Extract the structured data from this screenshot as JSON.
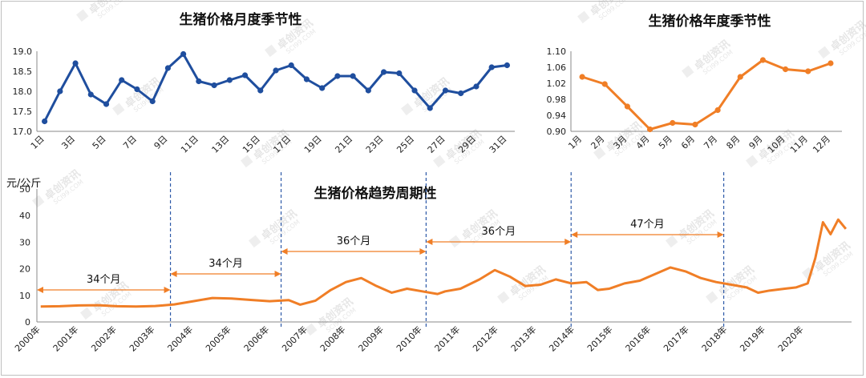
{
  "chart_data": [
    {
      "type": "line",
      "title": "生猪价格月度季节性",
      "x": [
        "1日",
        "2日",
        "3日",
        "4日",
        "5日",
        "6日",
        "7日",
        "8日",
        "9日",
        "10日",
        "11日",
        "12日",
        "13日",
        "14日",
        "15日",
        "16日",
        "17日",
        "18日",
        "19日",
        "20日",
        "21日",
        "22日",
        "23日",
        "24日",
        "25日",
        "26日",
        "27日",
        "28日",
        "29日",
        "30日",
        "31日"
      ],
      "xtick_labels": [
        "1日",
        "3日",
        "5日",
        "7日",
        "9日",
        "11日",
        "13日",
        "15日",
        "17日",
        "19日",
        "21日",
        "23日",
        "25日",
        "27日",
        "29日",
        "31日"
      ],
      "series": [
        {
          "values": [
            17.25,
            18.0,
            18.7,
            17.92,
            17.68,
            18.28,
            18.05,
            17.75,
            18.58,
            18.93,
            18.25,
            18.15,
            18.28,
            18.4,
            18.02,
            18.52,
            18.65,
            18.3,
            18.08,
            18.38,
            18.38,
            18.02,
            18.48,
            18.45,
            18.02,
            17.58,
            18.02,
            17.95,
            18.12,
            18.6,
            18.65
          ]
        }
      ],
      "ylim": [
        17.0,
        19.0
      ],
      "yticks": [
        "17.0",
        "17.5",
        "18.0",
        "18.5",
        "19.0"
      ],
      "colors": {
        "line": "#1f4e9e"
      },
      "grid": false
    },
    {
      "type": "line",
      "title": "生猪价格年度季节性",
      "x": [
        "1月",
        "2月",
        "3月",
        "4月",
        "5月",
        "6月",
        "7月",
        "8月",
        "9月",
        "10月",
        "11月",
        "12月"
      ],
      "series": [
        {
          "values": [
            1.036,
            1.018,
            0.962,
            0.905,
            0.921,
            0.917,
            0.953,
            1.036,
            1.078,
            1.055,
            1.05,
            1.07
          ]
        }
      ],
      "ylim": [
        0.9,
        1.1
      ],
      "yticks": [
        "0.90",
        "0.94",
        "0.98",
        "1.02",
        "1.06",
        "1.10"
      ],
      "colors": {
        "line": "#f07e26"
      },
      "grid": false
    },
    {
      "type": "line",
      "title": "生猪价格趋势周期性",
      "ylabel": "元/公斤",
      "x": [
        2000.0,
        2000.5,
        2001.0,
        2001.5,
        2002.0,
        2002.5,
        2003.0,
        2003.2,
        2003.5,
        2004.0,
        2004.5,
        2005.0,
        2005.5,
        2006.0,
        2006.5,
        2006.8,
        2007.2,
        2007.6,
        2008.0,
        2008.4,
        2008.8,
        2009.2,
        2009.6,
        2010.0,
        2010.4,
        2010.6,
        2011.0,
        2011.5,
        2011.9,
        2012.3,
        2012.7,
        2013.1,
        2013.5,
        2013.9,
        2014.3,
        2014.6,
        2014.9,
        2015.3,
        2015.7,
        2016.1,
        2016.5,
        2016.9,
        2017.3,
        2017.7,
        2018.1,
        2018.5,
        2018.8,
        2019.1,
        2019.5,
        2019.8,
        2020.1,
        2020.3,
        2020.5,
        2020.7,
        2020.9,
        2021.1
      ],
      "series": [
        {
          "values": [
            5.8,
            5.9,
            6.2,
            6.3,
            5.9,
            5.8,
            6.0,
            6.2,
            6.6,
            7.8,
            9.0,
            8.8,
            8.3,
            7.8,
            8.2,
            6.5,
            8.0,
            12.0,
            15.0,
            16.5,
            13.5,
            11.0,
            12.5,
            11.5,
            10.5,
            11.5,
            12.5,
            16.0,
            19.5,
            17.0,
            13.5,
            14.0,
            16.0,
            14.5,
            15.0,
            12.0,
            12.5,
            14.5,
            15.5,
            18.0,
            20.5,
            19.0,
            16.5,
            15.0,
            14.0,
            13.0,
            11.0,
            11.8,
            12.5,
            13.0,
            14.5,
            24.0,
            37.5,
            33.0,
            38.5,
            35.0
          ]
        }
      ],
      "ylim": [
        0,
        50
      ],
      "yticks": [
        "0",
        "10",
        "20",
        "30",
        "40",
        "50"
      ],
      "xtick_labels": [
        "2000年",
        "2001年",
        "2002年",
        "2003年",
        "2004年",
        "2005年",
        "2006年",
        "2007年",
        "2008年",
        "2009年",
        "2010年",
        "2011年",
        "2012年",
        "2013年",
        "2014年",
        "2015年",
        "2016年",
        "2017年",
        "2018年",
        "2019年",
        "2020年"
      ],
      "cycle_boundaries": [
        2003.4,
        2006.3,
        2010.1,
        2013.9,
        2017.9
      ],
      "period_annotations": [
        {
          "label": "34个月",
          "from": 1999.9,
          "to": 2003.4
        },
        {
          "label": "34个月",
          "from": 2003.4,
          "to": 2006.3
        },
        {
          "label": "36个月",
          "from": 2006.3,
          "to": 2010.1
        },
        {
          "label": "36个月",
          "from": 2010.1,
          "to": 2013.9
        },
        {
          "label": "47个月",
          "from": 2013.9,
          "to": 2017.9
        }
      ],
      "colors": {
        "line": "#f07e26",
        "boundary": "#2e5aa8",
        "arrow": "#f07e26"
      },
      "grid": false
    }
  ],
  "watermark": {
    "cn": "卓创资讯",
    "en": "SCI99.COM"
  }
}
